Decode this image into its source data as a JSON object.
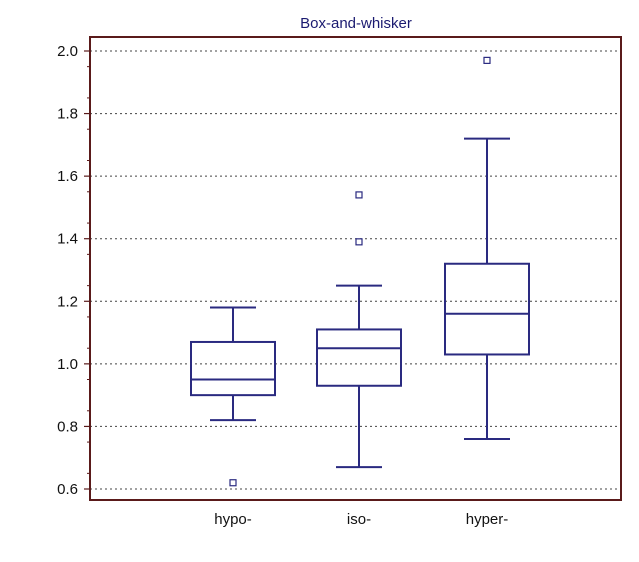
{
  "chart_data": {
    "type": "box",
    "title": "Box-and-whisker",
    "xlabel": "",
    "ylabel": "",
    "ylim": [
      0.56,
      2.08
    ],
    "yticks": [
      0.6,
      0.8,
      1.0,
      1.2,
      1.4,
      1.6,
      1.8,
      2.0
    ],
    "ytick_labels": [
      "0.6",
      "0.8",
      "1.0",
      "1.2",
      "1.4",
      "1.6",
      "1.8",
      "2.0"
    ],
    "grid": true,
    "categories": [
      "hypo-",
      "iso-",
      "hyper-"
    ],
    "boxes": [
      {
        "whisker_low": 0.82,
        "q1": 0.9,
        "median": 0.95,
        "q3": 1.07,
        "whisker_high": 1.18,
        "outliers": [
          0.62
        ]
      },
      {
        "whisker_low": 0.67,
        "q1": 0.93,
        "median": 1.05,
        "q3": 1.11,
        "whisker_high": 1.25,
        "outliers": [
          1.39,
          1.54
        ]
      },
      {
        "whisker_low": 0.76,
        "q1": 1.03,
        "median": 1.16,
        "q3": 1.32,
        "whisker_high": 1.72,
        "outliers": [
          1.97
        ]
      }
    ],
    "colors": {
      "box": "#2a2a80",
      "axis": "#5a1a1a",
      "grid": "#444444",
      "title": "#1a1a70"
    }
  }
}
